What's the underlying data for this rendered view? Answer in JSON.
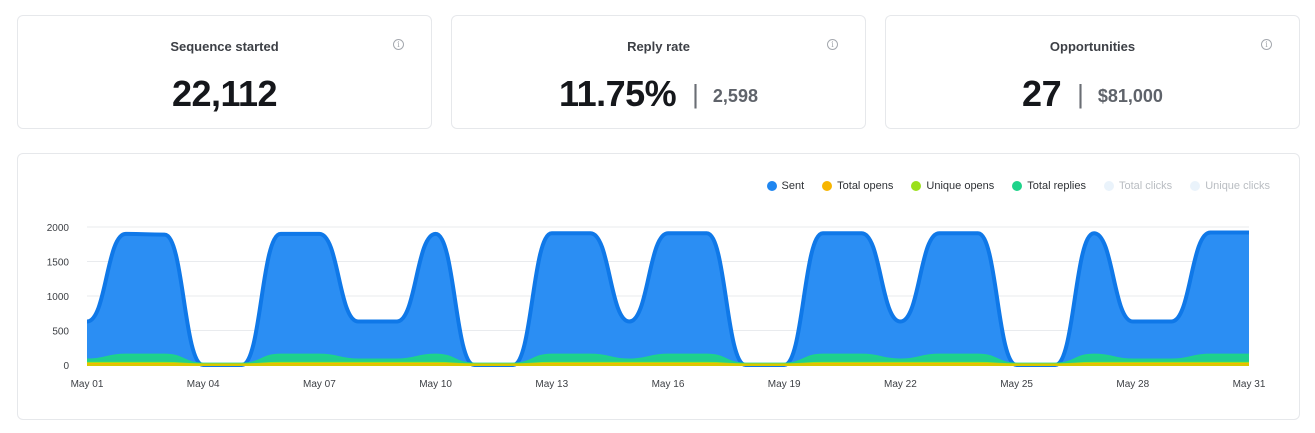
{
  "stats": [
    {
      "title": "Sequence started",
      "value": "22,112",
      "secondary": ""
    },
    {
      "title": "Reply rate",
      "value": "11.75%",
      "secondary": "2,598"
    },
    {
      "title": "Opportunities",
      "value": "27",
      "secondary": "$81,000"
    }
  ],
  "info_glyph": "i",
  "separator": "|",
  "legend": [
    {
      "label": "Sent",
      "color": "#1f86f0",
      "active": true
    },
    {
      "label": "Total opens",
      "color": "#f7b500",
      "active": true
    },
    {
      "label": "Unique opens",
      "color": "#9be01b",
      "active": true
    },
    {
      "label": "Total replies",
      "color": "#1ed38a",
      "active": true
    },
    {
      "label": "Total clicks",
      "color": "#eaf3fb",
      "active": false
    },
    {
      "label": "Unique clicks",
      "color": "#eaf3fb",
      "active": false
    }
  ],
  "chart_data": {
    "type": "area",
    "x": [
      "May 01",
      "May 02",
      "May 03",
      "May 04",
      "May 05",
      "May 06",
      "May 07",
      "May 08",
      "May 09",
      "May 10",
      "May 11",
      "May 12",
      "May 13",
      "May 14",
      "May 15",
      "May 16",
      "May 17",
      "May 18",
      "May 19",
      "May 20",
      "May 21",
      "May 22",
      "May 23",
      "May 24",
      "May 25",
      "May 26",
      "May 27",
      "May 28",
      "May 29",
      "May 30",
      "May 31"
    ],
    "x_tick_labels": [
      "May 01",
      "May 04",
      "May 07",
      "May 10",
      "May 13",
      "May 16",
      "May 19",
      "May 22",
      "May 25",
      "May 28",
      "May 31"
    ],
    "y_ticks": [
      0,
      500,
      1000,
      1500,
      2000
    ],
    "ylim": [
      0,
      2000
    ],
    "grid": true,
    "legend_position": "top-right",
    "series": [
      {
        "name": "Sent",
        "color": "#1f86f0",
        "values": [
          630,
          1900,
          1890,
          0,
          0,
          1900,
          1900,
          630,
          630,
          1900,
          0,
          0,
          1910,
          1910,
          630,
          1910,
          1910,
          0,
          0,
          1910,
          1910,
          630,
          1910,
          1910,
          0,
          0,
          1910,
          630,
          630,
          1920,
          1920
        ]
      },
      {
        "name": "Total replies",
        "color": "#1ed38a",
        "values": [
          80,
          150,
          150,
          20,
          20,
          150,
          150,
          80,
          80,
          150,
          20,
          20,
          150,
          150,
          80,
          150,
          150,
          20,
          20,
          150,
          150,
          80,
          150,
          150,
          20,
          20,
          150,
          80,
          80,
          150,
          150
        ]
      },
      {
        "name": "Unique opens",
        "color": "#9be01b",
        "values": [
          30,
          30,
          30,
          10,
          10,
          30,
          30,
          30,
          30,
          30,
          10,
          10,
          30,
          30,
          30,
          30,
          30,
          10,
          10,
          30,
          30,
          30,
          30,
          30,
          10,
          10,
          30,
          30,
          30,
          30,
          30
        ]
      },
      {
        "name": "Total opens",
        "color": "#f7b500",
        "values": [
          15,
          15,
          15,
          5,
          5,
          15,
          15,
          15,
          15,
          15,
          5,
          5,
          15,
          15,
          15,
          15,
          15,
          5,
          5,
          15,
          15,
          15,
          15,
          15,
          5,
          5,
          15,
          15,
          15,
          15,
          15
        ]
      }
    ]
  }
}
